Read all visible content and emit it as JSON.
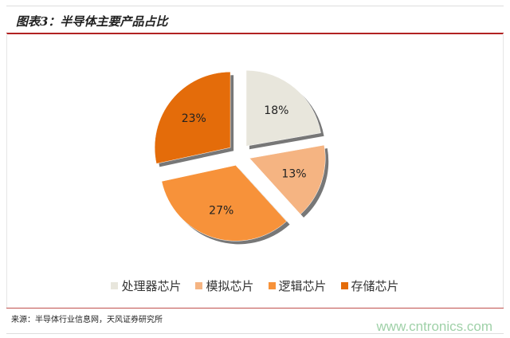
{
  "chart_data": {
    "type": "pie",
    "title": "图表3：半导体主要产品占比",
    "categories": [
      "处理器芯片",
      "模拟芯片",
      "逻辑芯片",
      "存储芯片"
    ],
    "values": [
      18,
      13,
      27,
      23
    ],
    "data_labels": [
      "18%",
      "13%",
      "27%",
      "23%"
    ],
    "colors": [
      "#e8e6dc",
      "#f5b482",
      "#f7923a",
      "#e46c0a"
    ],
    "exploded": true,
    "legend_position": "bottom"
  },
  "source": "来源：半导体行业信息网，天风证券研究所",
  "watermark": "www.cntronics.com"
}
